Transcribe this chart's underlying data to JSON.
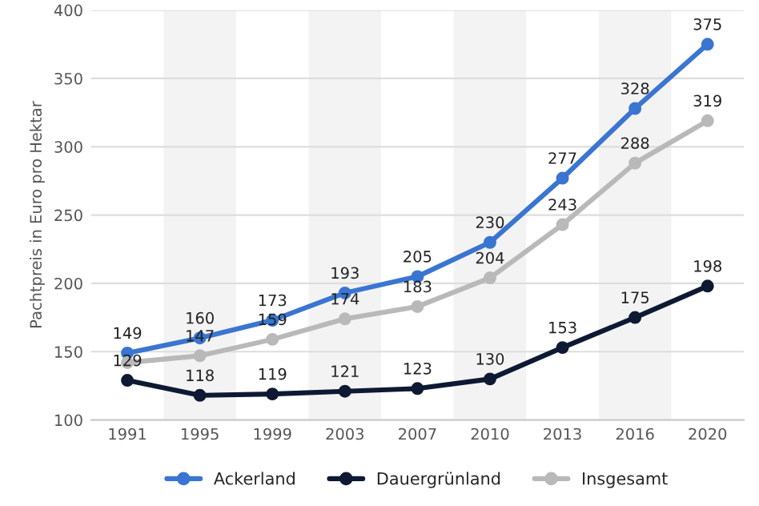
{
  "chart_data": {
    "type": "line",
    "ylabel": "Pachtpreis in Euro pro Hektar",
    "categories": [
      "1991",
      "1995",
      "1999",
      "2003",
      "2007",
      "2010",
      "2013",
      "2016",
      "2020"
    ],
    "series": [
      {
        "name": "Ackerland",
        "color": "#3a75d1",
        "values": [
          149,
          160,
          173,
          193,
          205,
          230,
          277,
          328,
          375
        ]
      },
      {
        "name": "Dauergrünland",
        "color": "#0e1a33",
        "values": [
          129,
          118,
          119,
          121,
          123,
          130,
          153,
          175,
          198
        ]
      },
      {
        "name": "Insgesamt",
        "color": "#b9b9b9",
        "values": [
          142,
          147,
          159,
          174,
          183,
          204,
          243,
          288,
          319
        ],
        "value_labels": [
          null,
          "147",
          "159",
          "174",
          "183",
          "204",
          "243",
          "288",
          "319"
        ]
      }
    ],
    "ylim": [
      100,
      400
    ],
    "yticks": [
      100,
      150,
      200,
      250,
      300,
      350,
      400
    ],
    "grid": "y",
    "legend": "bottom",
    "marker": "circle",
    "line_style": "solid",
    "data_labels": true,
    "bands": [
      {
        "axis": "x",
        "from": "1995",
        "to": "1995",
        "color": "#f3f3f3"
      },
      {
        "axis": "x",
        "from": "2003",
        "to": "2003",
        "color": "#f3f3f3"
      },
      {
        "axis": "x",
        "from": "2010",
        "to": "2010",
        "color": "#f3f3f3"
      },
      {
        "axis": "x",
        "from": "2016",
        "to": "2016",
        "color": "#f3f3f3"
      }
    ]
  }
}
